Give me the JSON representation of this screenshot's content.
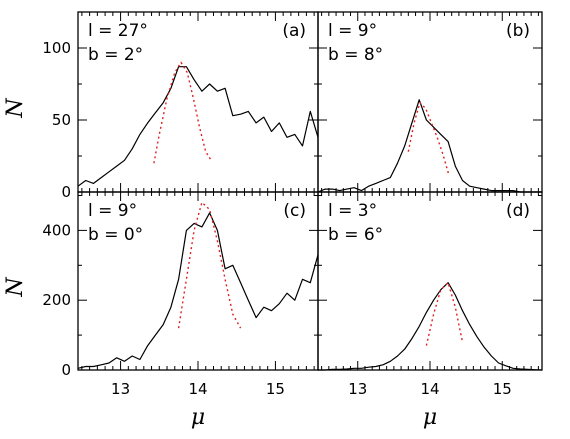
{
  "chart_data": [
    {
      "type": "line",
      "panel_label": "(a)",
      "annotation": [
        "l = 27°",
        "b = 2°"
      ],
      "ylabel": "N",
      "ylim": [
        0,
        125
      ],
      "yticks": [
        "0",
        "50",
        "100"
      ],
      "ytick_values": [
        0,
        50,
        100
      ],
      "xlim": [
        12.45,
        15.55
      ],
      "series": [
        {
          "style": "solid",
          "color": "#000000",
          "x": [
            12.45,
            12.55,
            12.65,
            12.75,
            12.85,
            12.95,
            13.05,
            13.15,
            13.25,
            13.35,
            13.45,
            13.55,
            13.65,
            13.75,
            13.85,
            13.95,
            14.05,
            14.15,
            14.25,
            14.35,
            14.45,
            14.55,
            14.65,
            14.75,
            14.85,
            14.95,
            15.05,
            15.15,
            15.25,
            15.35,
            15.45,
            15.55
          ],
          "y": [
            4,
            8,
            6,
            10,
            14,
            18,
            22,
            30,
            40,
            48,
            55,
            62,
            72,
            87,
            87,
            78,
            70,
            75,
            70,
            72,
            53,
            54,
            56,
            48,
            52,
            42,
            48,
            38,
            40,
            32,
            56,
            38
          ]
        },
        {
          "style": "dotted",
          "color": "#e02020",
          "x": [
            13.43,
            13.5,
            13.6,
            13.7,
            13.78,
            13.86,
            13.94,
            14.02,
            14.1,
            14.17
          ],
          "y": [
            20,
            40,
            65,
            83,
            90,
            83,
            65,
            45,
            28,
            22
          ]
        }
      ]
    },
    {
      "type": "line",
      "panel_label": "(b)",
      "annotation": [
        "l = 9°",
        "b = 8°"
      ],
      "ylim": [
        0,
        125
      ],
      "xlim": [
        12.45,
        15.55
      ],
      "series": [
        {
          "style": "solid",
          "color": "#000000",
          "x": [
            12.45,
            12.55,
            12.65,
            12.75,
            12.85,
            12.95,
            13.05,
            13.15,
            13.25,
            13.35,
            13.45,
            13.55,
            13.65,
            13.75,
            13.85,
            13.95,
            14.05,
            14.15,
            14.25,
            14.35,
            14.45,
            14.55,
            14.65,
            14.75,
            14.85,
            14.95,
            15.05,
            15.15,
            15.25,
            15.35,
            15.45,
            15.55
          ],
          "y": [
            0,
            2,
            2,
            1,
            2,
            3,
            1,
            4,
            6,
            8,
            10,
            20,
            32,
            48,
            64,
            50,
            45,
            40,
            35,
            18,
            8,
            4,
            3,
            2,
            1,
            1,
            1,
            1,
            0,
            0,
            0,
            0
          ]
        },
        {
          "style": "dotted",
          "color": "#e02020",
          "x": [
            13.7,
            13.78,
            13.86,
            13.94,
            14.02,
            14.1,
            14.18,
            14.26
          ],
          "y": [
            28,
            48,
            62,
            58,
            48,
            38,
            26,
            12
          ]
        }
      ]
    },
    {
      "type": "line",
      "panel_label": "(c)",
      "annotation": [
        "l = 9°",
        "b = 0°"
      ],
      "ylabel": "N",
      "ylim": [
        0,
        510
      ],
      "yticks": [
        "0",
        "200",
        "400"
      ],
      "ytick_values": [
        0,
        200,
        400
      ],
      "xlim": [
        12.45,
        15.55
      ],
      "xticks": [
        "13",
        "14",
        "15"
      ],
      "xtick_values": [
        13,
        14,
        15
      ],
      "xlabel": "μ",
      "series": [
        {
          "style": "solid",
          "color": "#000000",
          "x": [
            12.45,
            12.55,
            12.65,
            12.75,
            12.85,
            12.95,
            13.05,
            13.15,
            13.25,
            13.35,
            13.45,
            13.55,
            13.65,
            13.75,
            13.85,
            13.95,
            14.05,
            14.15,
            14.25,
            14.35,
            14.45,
            14.55,
            14.65,
            14.75,
            14.85,
            14.95,
            15.05,
            15.15,
            15.25,
            15.35,
            15.45,
            15.55
          ],
          "y": [
            5,
            10,
            10,
            15,
            20,
            35,
            25,
            40,
            30,
            70,
            100,
            130,
            180,
            260,
            400,
            420,
            410,
            450,
            400,
            290,
            300,
            250,
            200,
            150,
            180,
            170,
            190,
            220,
            200,
            260,
            250,
            330
          ]
        },
        {
          "style": "dotted",
          "color": "#e02020",
          "x": [
            13.75,
            13.85,
            13.95,
            14.05,
            14.15,
            14.25,
            14.35,
            14.45,
            14.55
          ],
          "y": [
            120,
            260,
            400,
            480,
            460,
            370,
            260,
            160,
            120
          ]
        }
      ]
    },
    {
      "type": "line",
      "panel_label": "(d)",
      "annotation": [
        "l = 3°",
        "b = 6°"
      ],
      "ylim": [
        0,
        510
      ],
      "xlim": [
        12.45,
        15.55
      ],
      "xticks": [
        "13",
        "14",
        "15"
      ],
      "xtick_values": [
        13,
        14,
        15
      ],
      "xlabel": "μ",
      "series": [
        {
          "style": "solid",
          "color": "#000000",
          "x": [
            12.45,
            12.55,
            12.65,
            12.75,
            12.85,
            12.95,
            13.05,
            13.15,
            13.25,
            13.35,
            13.45,
            13.55,
            13.65,
            13.75,
            13.85,
            13.95,
            14.05,
            14.15,
            14.25,
            14.35,
            14.45,
            14.55,
            14.65,
            14.75,
            14.85,
            14.95,
            15.05,
            15.15,
            15.25,
            15.35,
            15.45,
            15.55
          ],
          "y": [
            0,
            0,
            2,
            2,
            3,
            5,
            5,
            8,
            10,
            15,
            25,
            40,
            60,
            90,
            125,
            165,
            200,
            230,
            250,
            215,
            170,
            130,
            95,
            65,
            40,
            20,
            12,
            5,
            3,
            2,
            1,
            0
          ]
        },
        {
          "style": "dotted",
          "color": "#e02020",
          "x": [
            13.95,
            14.05,
            14.15,
            14.25,
            14.35,
            14.45
          ],
          "y": [
            70,
            160,
            230,
            250,
            180,
            80
          ]
        }
      ]
    }
  ]
}
